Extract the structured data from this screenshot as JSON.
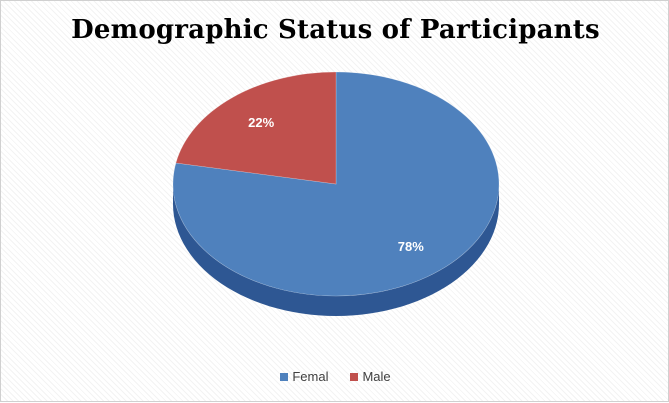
{
  "chart_data": {
    "type": "pie",
    "title": "Demographic Status of Participants",
    "categories": [
      "Femal",
      "Male"
    ],
    "values": [
      78,
      22
    ],
    "labels": [
      "78%",
      "22%"
    ],
    "colors": [
      "#4F81BD",
      "#C0504D"
    ],
    "side_colors": [
      "#2E5793",
      "#8C3431"
    ],
    "legend_position": "bottom",
    "style": "3d"
  }
}
